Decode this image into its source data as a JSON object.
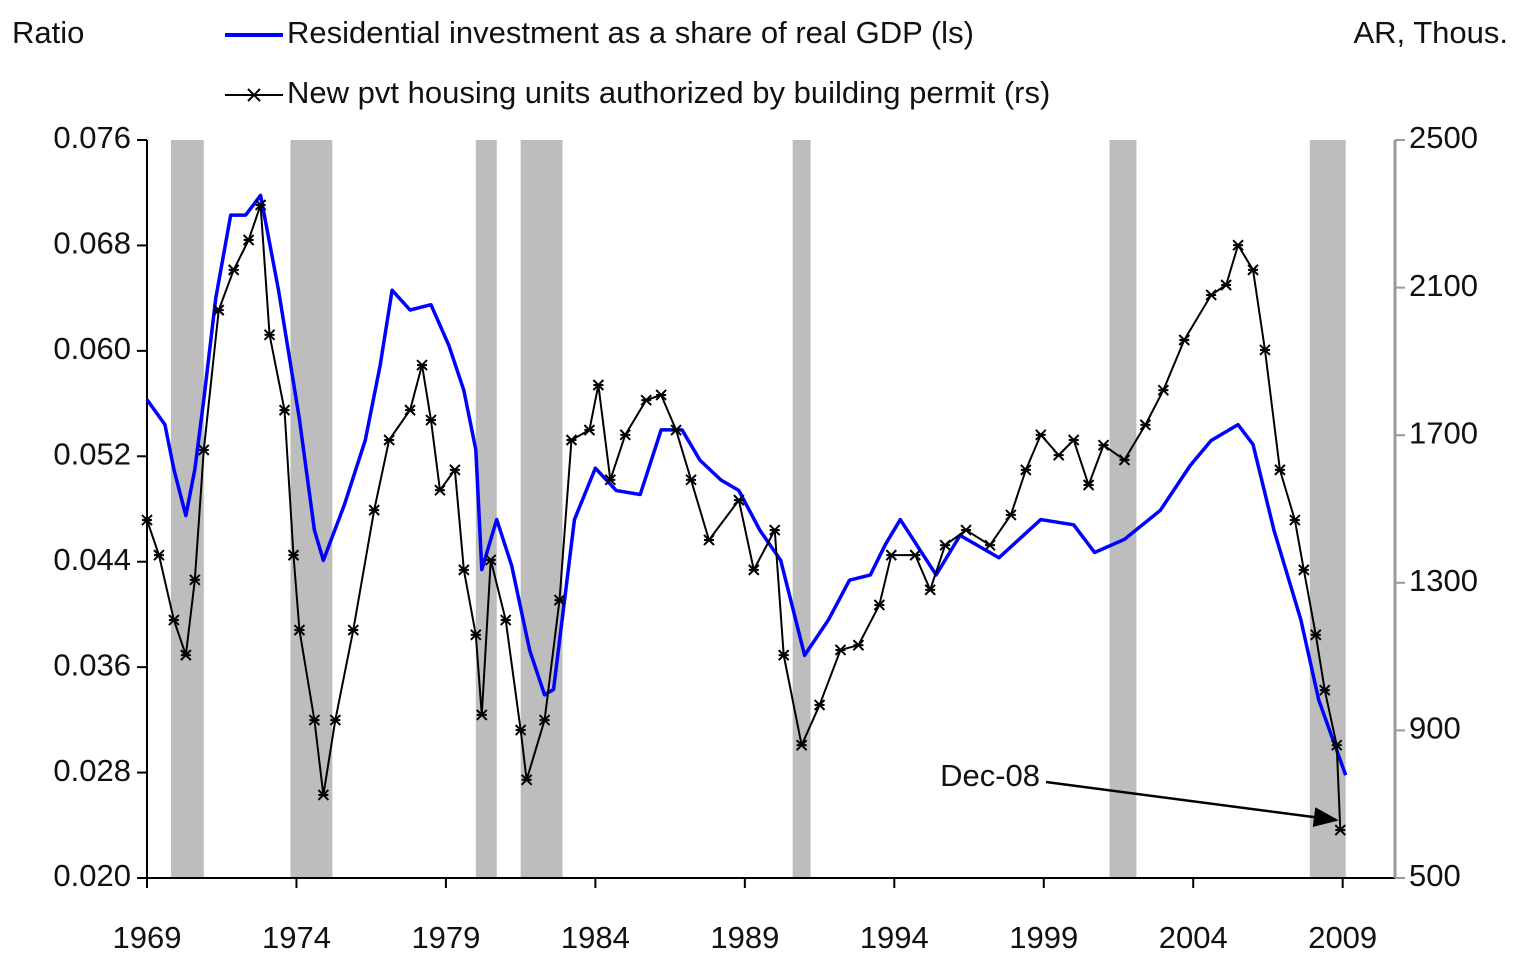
{
  "chart_data": {
    "type": "line",
    "y_label": "Ratio",
    "y2_label": "AR, Thous.",
    "xlim": [
      1969,
      2010.75
    ],
    "xticks": [
      1969,
      1974,
      1979,
      1984,
      1989,
      1994,
      1999,
      2004,
      2009
    ],
    "ylim": [
      0.02,
      0.076
    ],
    "yticks": [
      {
        "value": 0.02,
        "label": "0.020"
      },
      0.028,
      0.036,
      0.044,
      0.052,
      {
        "value": 0.06,
        "label": "0.060"
      },
      0.068,
      0.076
    ],
    "y2lim": [
      500,
      2500
    ],
    "y2ticks": [
      500,
      900,
      1300,
      1700,
      2100,
      2500
    ],
    "recession_color": "#bdbdbd",
    "recessions": [
      [
        1969.8,
        1970.9
      ],
      [
        1973.8,
        1975.2
      ],
      [
        1980.0,
        1980.7
      ],
      [
        1981.5,
        1982.9
      ],
      [
        1990.6,
        1991.2
      ],
      [
        2001.2,
        2002.1
      ],
      [
        2007.9,
        2009.1
      ]
    ],
    "annotation": "Dec-08",
    "series": [
      {
        "name": "Residential investment as a share of real GDP (ls)",
        "color": "#0000ff",
        "marker": "none",
        "x": [
          1969.0,
          1969.6,
          1969.9,
          1970.3,
          1970.6,
          1970.9,
          1971.3,
          1971.8,
          1972.3,
          1972.8,
          1973.4,
          1974.1,
          1974.6,
          1974.9,
          1975.6,
          1976.3,
          1976.8,
          1977.2,
          1977.8,
          1978.5,
          1979.1,
          1979.6,
          1980.0,
          1980.2,
          1980.7,
          1981.2,
          1981.8,
          1982.3,
          1982.6,
          1983.3,
          1984.0,
          1984.7,
          1985.5,
          1986.2,
          1986.9,
          1987.5,
          1988.2,
          1988.8,
          1989.5,
          1990.2,
          1991.0,
          1991.8,
          1992.5,
          1993.2,
          1993.7,
          1994.2,
          1995.4,
          1996.2,
          1997.5,
          1998.9,
          2000.0,
          2000.7,
          2001.7,
          2002.9,
          2003.9,
          2004.6,
          2005.5,
          2006.0,
          2006.7,
          2007.6,
          2008.2,
          2009.1
        ],
        "values": [
          0.0563,
          0.0544,
          0.051,
          0.0475,
          0.051,
          0.0563,
          0.064,
          0.0703,
          0.0703,
          0.0718,
          0.0646,
          0.0548,
          0.0464,
          0.0441,
          0.0483,
          0.0532,
          0.0589,
          0.0646,
          0.0631,
          0.0635,
          0.0604,
          0.057,
          0.0525,
          0.0434,
          0.0472,
          0.0437,
          0.0373,
          0.0339,
          0.0343,
          0.0472,
          0.0511,
          0.0494,
          0.0491,
          0.054,
          0.054,
          0.0517,
          0.0502,
          0.0494,
          0.0464,
          0.0441,
          0.0369,
          0.0396,
          0.0426,
          0.043,
          0.0453,
          0.0472,
          0.043,
          0.046,
          0.0443,
          0.0472,
          0.0468,
          0.0447,
          0.0457,
          0.0479,
          0.0513,
          0.0532,
          0.0544,
          0.0529,
          0.0464,
          0.0396,
          0.0335,
          0.0278
        ]
      },
      {
        "name": "New pvt housing units authorized by building permit (rs)",
        "color": "#000000",
        "marker": "x",
        "axis": "y2",
        "x": [
          1969.0,
          1969.4,
          1969.9,
          1970.3,
          1970.6,
          1970.9,
          1971.4,
          1971.9,
          1972.4,
          1972.8,
          1973.1,
          1973.6,
          1973.9,
          1974.1,
          1974.6,
          1974.9,
          1975.3,
          1975.9,
          1976.6,
          1977.1,
          1977.8,
          1978.2,
          1978.5,
          1978.8,
          1979.3,
          1979.6,
          1980.0,
          1980.2,
          1980.5,
          1981.0,
          1981.5,
          1981.7,
          1982.3,
          1982.8,
          1983.2,
          1983.8,
          1984.1,
          1984.5,
          1985.0,
          1985.7,
          1986.2,
          1986.7,
          1987.2,
          1987.8,
          1988.8,
          1989.3,
          1990.0,
          1990.3,
          1990.9,
          1991.5,
          1992.2,
          1992.8,
          1993.5,
          1993.9,
          1994.7,
          1995.2,
          1995.7,
          1996.4,
          1997.2,
          1997.9,
          1998.4,
          1998.9,
          1999.5,
          2000.0,
          2000.5,
          2001.0,
          2001.7,
          2002.4,
          2003.0,
          2003.7,
          2004.6,
          2005.1,
          2005.5,
          2006.0,
          2006.4,
          2006.9,
          2007.4,
          2007.7,
          2008.1,
          2008.4,
          2008.8,
          2008.92
        ],
        "values": [
          1470,
          1375,
          1199,
          1104,
          1308,
          1660,
          2039,
          2148,
          2229,
          2324,
          1972,
          1768,
          1375,
          1172,
          928,
          725,
          928,
          1172,
          1497,
          1687,
          1768,
          1890,
          1741,
          1551,
          1606,
          1335,
          1159,
          942,
          1362,
          1199,
          901,
          766,
          928,
          1253,
          1687,
          1714,
          1836,
          1579,
          1701,
          1795,
          1809,
          1714,
          1579,
          1416,
          1524,
          1335,
          1443,
          1104,
          860,
          969,
          1118,
          1131,
          1240,
          1375,
          1375,
          1281,
          1402,
          1443,
          1402,
          1484,
          1606,
          1701,
          1646,
          1687,
          1565,
          1673,
          1633,
          1728,
          1822,
          1958,
          2080,
          2107,
          2215,
          2148,
          1931,
          1606,
          1470,
          1335,
          1159,
          1009,
          860,
          630
        ]
      }
    ]
  }
}
